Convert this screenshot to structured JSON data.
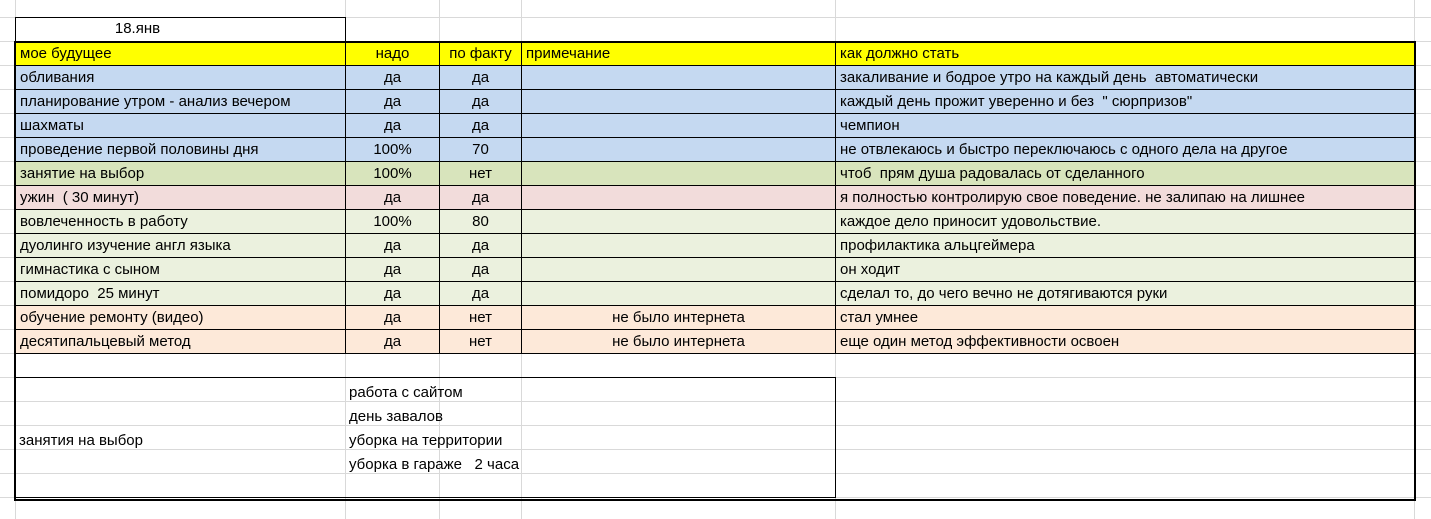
{
  "date": "18.янв",
  "table": {
    "header": [
      "мое будущее",
      "надо",
      "по факту",
      "примечание",
      "как должно стать"
    ],
    "rows": [
      [
        "обливания",
        "да",
        "да",
        "",
        "закаливание и бодрое утро на каждый день  автоматически"
      ],
      [
        "планирование утром - анализ вечером",
        "да",
        "да",
        "",
        "каждый день прожит уверенно и без  \" сюрпризов\""
      ],
      [
        "шахматы",
        "да",
        "да",
        "",
        "чемпион"
      ],
      [
        "проведение первой половины дня",
        "100%",
        "70",
        "",
        "не отвлекаюсь и быстро переключаюсь с одного дела на другое"
      ],
      [
        "занятие на выбор",
        "100%",
        "нет",
        "",
        "чтоб  прям душа радовалась от сделанного"
      ],
      [
        "ужин  ( 30 минут)",
        "да",
        "да",
        "",
        "я полностью контролирую свое поведение. не залипаю на лишнее"
      ],
      [
        "вовлеченность в работу",
        "100%",
        "80",
        "",
        "каждое дело приносит удовольствие."
      ],
      [
        "дуолинго изучение англ языка",
        "да",
        "да",
        "",
        "профилактика альцгеймера"
      ],
      [
        "гимнастика с сыном",
        "да",
        "да",
        "",
        "он ходит"
      ],
      [
        "помидоро  25 минут",
        "да",
        "да",
        "",
        "сделал то, до чего вечно не дотягиваются руки"
      ],
      [
        "обучение ремонту (видео)",
        "да",
        "нет",
        "не было интернета",
        "стал умнее"
      ],
      [
        "десятипальцевый метод",
        "да",
        "нет",
        "не было интернета",
        "еще один метод эффективности освоен"
      ]
    ]
  },
  "choices": {
    "label": "занятия на выбор",
    "items": [
      "работа с сайтом",
      "день завалов",
      "уборка на территории",
      "уборка в гараже   2 часа"
    ]
  }
}
